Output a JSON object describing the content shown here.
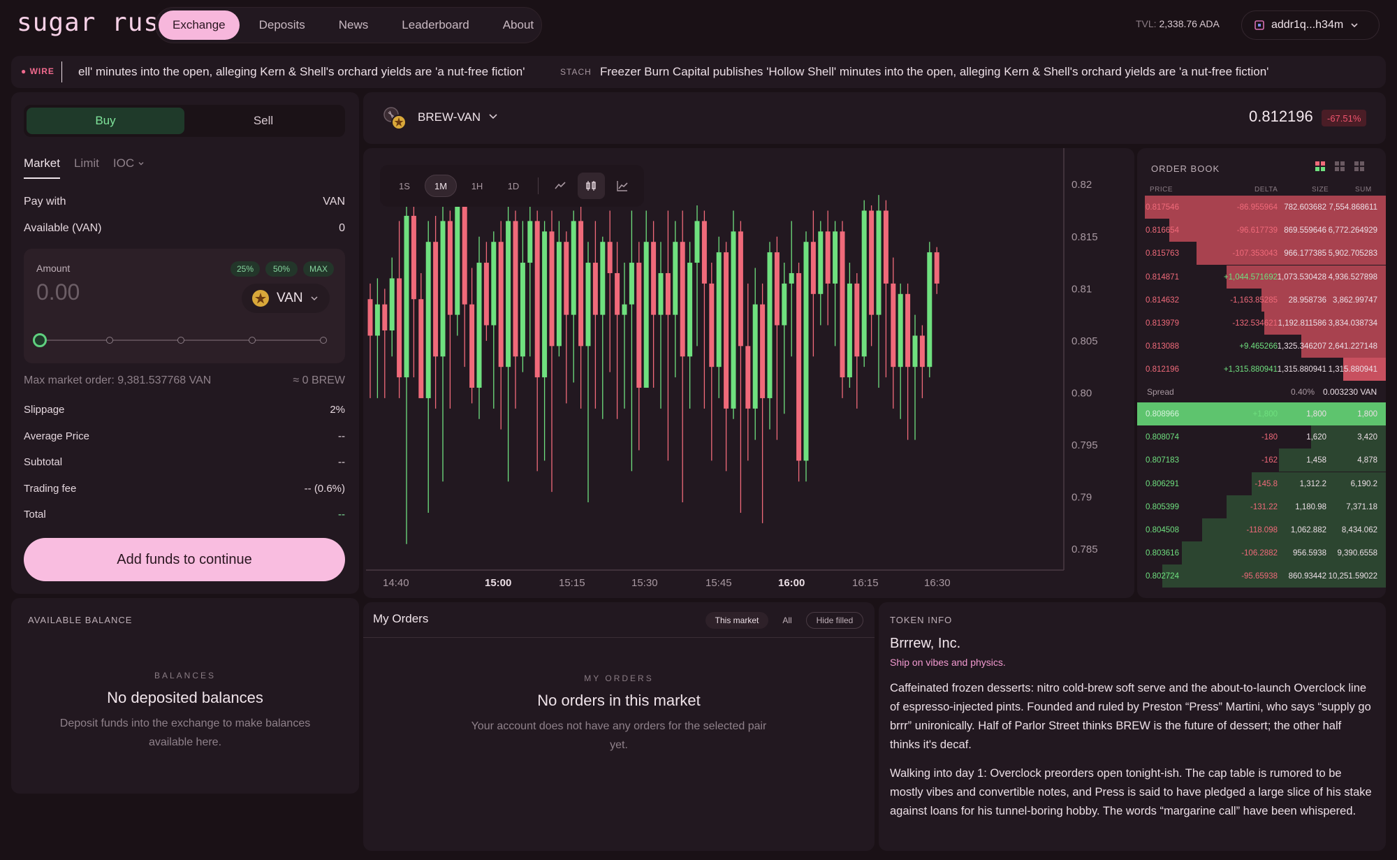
{
  "header": {
    "logo": "sugar rush",
    "nav": [
      {
        "label": "Exchange",
        "active": true
      },
      {
        "label": "Deposits",
        "active": false
      },
      {
        "label": "News",
        "active": false
      },
      {
        "label": "Leaderboard",
        "active": false
      },
      {
        "label": "About",
        "active": false
      }
    ],
    "tvl_label": "TVL:",
    "tvl_value": "2,338.76 ADA",
    "wallet": "addr1q...h34m"
  },
  "ticker": {
    "label": "WIRE",
    "text1": "ell' minutes into the open, alleging Kern & Shell's orchard yields are 'a nut-free fiction'",
    "tag2": "STACH",
    "text2": "Freezer Burn Capital publishes 'Hollow Shell' minutes into the open, alleging Kern & Shell's orchard yields are 'a nut-free fiction'"
  },
  "trade": {
    "buy": "Buy",
    "sell": "Sell",
    "order_types": [
      "Market",
      "Limit",
      "IOC"
    ],
    "pay_with_label": "Pay with",
    "pay_with_value": "VAN",
    "available_label": "Available (VAN)",
    "available_value": "0",
    "amount_label": "Amount",
    "pct": [
      "25%",
      "50%",
      "MAX"
    ],
    "amount_value": "0.00",
    "token": "VAN",
    "slider_fraction": 0,
    "max_order": "Max market order: 9,381.537768 VAN",
    "approx": "≈ 0 BREW",
    "slippage_label": "Slippage",
    "slippage_value": "2%",
    "avg_price_label": "Average Price",
    "avg_price_value": "--",
    "subtotal_label": "Subtotal",
    "subtotal_value": "--",
    "fee_label": "Trading fee",
    "fee_value": "-- (0.6%)",
    "total_label": "Total",
    "total_value": "--",
    "cta": "Add funds to continue"
  },
  "balances": {
    "title": "AVAILABLE BALANCE",
    "caption": "BALANCES",
    "empty_title": "No deposited balances",
    "empty_desc": "Deposit funds into the exchange to make balances available here."
  },
  "pair": {
    "name": "BREW-VAN",
    "price": "0.812196",
    "change": "-67.51%"
  },
  "chart": {
    "timeframes": [
      "1S",
      "1M",
      "1H",
      "1D"
    ],
    "active_timeframe": "1M",
    "y_ticks": [
      "0.82",
      "0.815",
      "0.81",
      "0.805",
      "0.80",
      "0.795",
      "0.79",
      "0.785"
    ],
    "x_ticks": [
      {
        "label": "14:40",
        "bold": false
      },
      {
        "label": "15:00",
        "bold": true
      },
      {
        "label": "15:15",
        "bold": false
      },
      {
        "label": "15:30",
        "bold": false
      },
      {
        "label": "15:45",
        "bold": false
      },
      {
        "label": "16:00",
        "bold": true
      },
      {
        "label": "16:15",
        "bold": false
      },
      {
        "label": "16:30",
        "bold": false
      }
    ],
    "up_color": "#6fe07f",
    "down_color": "#f06a7a"
  },
  "chart_data": {
    "type": "candlestick",
    "ylim": [
      0.783,
      0.8235
    ],
    "x_labels": [
      "14:40",
      "15:00",
      "15:15",
      "15:30",
      "15:45",
      "16:00",
      "16:15",
      "16:30"
    ],
    "candles": [
      [
        0.809,
        0.8055,
        0.8105,
        0.7995
      ],
      [
        0.8055,
        0.8085,
        0.811,
        0.7995
      ],
      [
        0.8085,
        0.806,
        0.81,
        0.7995
      ],
      [
        0.806,
        0.811,
        0.813,
        0.8035
      ],
      [
        0.811,
        0.8015,
        0.8165,
        0.7995
      ],
      [
        0.8015,
        0.817,
        0.818,
        0.7855
      ],
      [
        0.817,
        0.809,
        0.8185,
        0.8015
      ],
      [
        0.809,
        0.7995,
        0.8115,
        0.7995
      ],
      [
        0.7995,
        0.8145,
        0.8165,
        0.7885
      ],
      [
        0.8145,
        0.8035,
        0.817,
        0.7985
      ],
      [
        0.8035,
        0.8165,
        0.8205,
        0.7915
      ],
      [
        0.8165,
        0.8075,
        0.8175,
        0.7985
      ],
      [
        0.8075,
        0.8185,
        0.819,
        0.8055
      ],
      [
        0.8185,
        0.8085,
        0.8195,
        0.8025
      ],
      [
        0.8085,
        0.8005,
        0.812,
        0.799
      ],
      [
        0.8005,
        0.8125,
        0.815,
        0.7975
      ],
      [
        0.8125,
        0.8065,
        0.8145,
        0.805
      ],
      [
        0.8065,
        0.8145,
        0.8155,
        0.7985
      ],
      [
        0.8145,
        0.8025,
        0.8165,
        0.7965
      ],
      [
        0.8025,
        0.8165,
        0.8185,
        0.7915
      ],
      [
        0.8165,
        0.8035,
        0.8175,
        0.7985
      ],
      [
        0.8035,
        0.8125,
        0.8165,
        0.802
      ],
      [
        0.8125,
        0.8165,
        0.8185,
        0.8035
      ],
      [
        0.8165,
        0.8015,
        0.8175,
        0.7925
      ],
      [
        0.8015,
        0.8155,
        0.8165,
        0.7935
      ],
      [
        0.8155,
        0.8045,
        0.8175,
        0.7905
      ],
      [
        0.8045,
        0.8145,
        0.8165,
        0.8035
      ],
      [
        0.8145,
        0.8075,
        0.8155,
        0.799
      ],
      [
        0.8075,
        0.8165,
        0.8175,
        0.801
      ],
      [
        0.8165,
        0.8045,
        0.8185,
        0.7985
      ],
      [
        0.8045,
        0.8125,
        0.8145,
        0.7895
      ],
      [
        0.8125,
        0.8075,
        0.8165,
        0.7985
      ],
      [
        0.8075,
        0.8145,
        0.815,
        0.7975
      ],
      [
        0.8145,
        0.8115,
        0.8175,
        0.802
      ],
      [
        0.8115,
        0.8075,
        0.8145,
        0.7975
      ],
      [
        0.8075,
        0.8085,
        0.8125,
        0.7985
      ],
      [
        0.8085,
        0.8125,
        0.8175,
        0.7925
      ],
      [
        0.8125,
        0.8005,
        0.8145,
        0.7945
      ],
      [
        0.8005,
        0.8145,
        0.8175,
        0.8015
      ],
      [
        0.8145,
        0.8075,
        0.8165,
        0.8005
      ],
      [
        0.8075,
        0.8115,
        0.8145,
        0.7985
      ],
      [
        0.8115,
        0.8075,
        0.8175,
        0.7935
      ],
      [
        0.8075,
        0.8145,
        0.8165,
        0.8015
      ],
      [
        0.8145,
        0.8035,
        0.8175,
        0.7895
      ],
      [
        0.8035,
        0.8125,
        0.8145,
        0.7985
      ],
      [
        0.8125,
        0.8165,
        0.818,
        0.8045
      ],
      [
        0.8165,
        0.8105,
        0.8175,
        0.7985
      ],
      [
        0.8105,
        0.8025,
        0.8125,
        0.7935
      ],
      [
        0.8025,
        0.8135,
        0.815,
        0.7995
      ],
      [
        0.8135,
        0.7985,
        0.8145,
        0.7925
      ],
      [
        0.7985,
        0.8155,
        0.8175,
        0.7975
      ],
      [
        0.8155,
        0.8045,
        0.8165,
        0.7885
      ],
      [
        0.8045,
        0.7985,
        0.8105,
        0.7935
      ],
      [
        0.7985,
        0.8085,
        0.812,
        0.7955
      ],
      [
        0.8085,
        0.7995,
        0.8105,
        0.7875
      ],
      [
        0.7995,
        0.8135,
        0.8145,
        0.7965
      ],
      [
        0.8135,
        0.8065,
        0.815,
        0.7955
      ],
      [
        0.8065,
        0.8105,
        0.8125,
        0.798
      ],
      [
        0.8105,
        0.8115,
        0.8165,
        0.8035
      ],
      [
        0.8115,
        0.7935,
        0.8125,
        0.7915
      ],
      [
        0.7935,
        0.8145,
        0.8155,
        0.7915
      ],
      [
        0.8145,
        0.8095,
        0.8175,
        0.8035
      ],
      [
        0.8095,
        0.8155,
        0.8165,
        0.8065
      ],
      [
        0.8155,
        0.8105,
        0.8175,
        0.8065
      ],
      [
        0.8105,
        0.8155,
        0.8165,
        0.8045
      ],
      [
        0.8155,
        0.8015,
        0.8165,
        0.7995
      ],
      [
        0.8015,
        0.8105,
        0.8125,
        0.8005
      ],
      [
        0.8105,
        0.8035,
        0.8115,
        0.7985
      ],
      [
        0.8035,
        0.8175,
        0.8185,
        0.8025
      ],
      [
        0.8175,
        0.8075,
        0.818,
        0.8045
      ],
      [
        0.8075,
        0.8175,
        0.819,
        0.8005
      ],
      [
        0.8175,
        0.8105,
        0.8185,
        0.8015
      ],
      [
        0.8105,
        0.8025,
        0.813,
        0.7985
      ],
      [
        0.8025,
        0.8095,
        0.8105,
        0.7975
      ],
      [
        0.8095,
        0.8025,
        0.8105,
        0.7955
      ],
      [
        0.8025,
        0.8055,
        0.8075,
        0.7955
      ],
      [
        0.8055,
        0.8025,
        0.8065,
        0.7995
      ],
      [
        0.8025,
        0.8135,
        0.8145,
        0.8015
      ],
      [
        0.8135,
        0.8105,
        0.814,
        0.8095
      ]
    ]
  },
  "orderbook": {
    "title": "ORDER BOOK",
    "headers": [
      "PRICE",
      "DELTA",
      "SIZE",
      "SUM"
    ],
    "asks": [
      {
        "price": "0.817546",
        "delta": "-86.955964",
        "size": "782.603682",
        "sum": "7,554.868611",
        "depth": 0.97
      },
      {
        "price": "0.816654",
        "delta": "-96.617739",
        "size": "869.559646",
        "sum": "6,772.264929",
        "depth": 0.87
      },
      {
        "price": "0.815763",
        "delta": "-107.353043",
        "size": "966.177385",
        "sum": "5,902.705283",
        "depth": 0.76
      },
      {
        "price": "0.814871",
        "delta": "+1,044.571692",
        "size": "1,073.530428",
        "sum": "4,936.527898",
        "depth": 0.64
      },
      {
        "price": "0.814632",
        "delta": "-1,163.85285",
        "size": "28.958736",
        "sum": "3,862.99747",
        "depth": 0.5
      },
      {
        "price": "0.813979",
        "delta": "-132.534621",
        "size": "1,192.811586",
        "sum": "3,834.038734",
        "depth": 0.49
      },
      {
        "price": "0.813088",
        "delta": "+9.465266",
        "size": "1,325.346207",
        "sum": "2,641.227148",
        "depth": 0.34
      },
      {
        "price": "0.812196",
        "delta": "+1,315.880941",
        "size": "1,315.880941",
        "sum": "1,315.880941",
        "depth": 0.17
      }
    ],
    "spread_label": "Spread",
    "spread_pct": "0.40%",
    "spread_value": "0.003230 VAN",
    "bids": [
      {
        "price": "0.808966",
        "delta": "+1,800",
        "size": "1,800",
        "sum": "1,800",
        "depth": 0.16
      },
      {
        "price": "0.808074",
        "delta": "-180",
        "size": "1,620",
        "sum": "3,420",
        "depth": 0.3
      },
      {
        "price": "0.807183",
        "delta": "-162",
        "size": "1,458",
        "sum": "4,878",
        "depth": 0.43
      },
      {
        "price": "0.806291",
        "delta": "-145.8",
        "size": "1,312.2",
        "sum": "6,190.2",
        "depth": 0.54
      },
      {
        "price": "0.805399",
        "delta": "-131.22",
        "size": "1,180.98",
        "sum": "7,371.18",
        "depth": 0.64
      },
      {
        "price": "0.804508",
        "delta": "-118.098",
        "size": "1,062.882",
        "sum": "8,434.062",
        "depth": 0.74
      },
      {
        "price": "0.803616",
        "delta": "-106.2882",
        "size": "956.5938",
        "sum": "9,390.6558",
        "depth": 0.82
      },
      {
        "price": "0.802724",
        "delta": "-95.65938",
        "size": "860.93442",
        "sum": "10,251.59022",
        "depth": 0.9
      }
    ]
  },
  "my_orders": {
    "title": "My Orders",
    "filters": [
      "This market",
      "All",
      "Hide filled"
    ],
    "caption": "MY ORDERS",
    "empty_title": "No orders in this market",
    "empty_desc": "Your account does not have any orders for the selected pair yet."
  },
  "token_info": {
    "title": "TOKEN INFO",
    "name": "Brrrew, Inc.",
    "tagline": "Ship on vibes and physics.",
    "para1": "Caffeinated frozen desserts: nitro cold-brew soft serve and the about-to-launch Overclock line of espresso-injected pints. Founded and ruled by Preston “Press” Martini, who says “supply go brrr” unironically. Half of Parlor Street thinks BREW is the future of dessert; the other half thinks it's decaf.",
    "para2": "Walking into day 1: Overclock preorders open tonight-ish. The cap table is rumored to be mostly vibes and convertible notes, and Press is said to have pledged a large slice of his stake against loans for his tunnel-boring hobby. The words “margarine call” have been whispered."
  }
}
